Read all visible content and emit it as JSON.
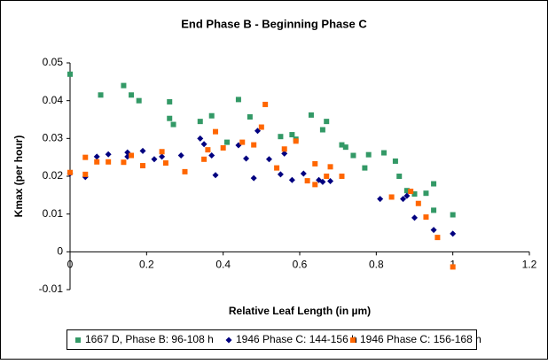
{
  "chart_data": {
    "type": "scatter",
    "title": "End Phase B - Beginning Phase C",
    "x_label": "Relative Leaf Length (in µm)",
    "y_label": "Kmax (per hour)",
    "xlim": [
      0,
      1.2
    ],
    "xticks": [
      0,
      0.2,
      0.4,
      0.6,
      0.8,
      1,
      1.2
    ],
    "ylim": [
      -0.01,
      0.05
    ],
    "yticks": [
      -0.01,
      0,
      0.01,
      0.02,
      0.03,
      0.04,
      0.05
    ],
    "legend": "bottom",
    "series": [
      {
        "name": "1667 D, Phase B: 96-108 h",
        "color": "#339966",
        "marker": "square",
        "x": [
          0,
          0.08,
          0.14,
          0.16,
          0.18,
          0.26,
          0.26,
          0.27,
          0.34,
          0.37,
          0.41,
          0.44,
          0.47,
          0.55,
          0.58,
          0.59,
          0.63,
          0.66,
          0.67,
          0.71,
          0.72,
          0.74,
          0.77,
          0.78,
          0.82,
          0.85,
          0.86,
          0.88,
          0.9,
          0.93,
          0.95,
          0.95,
          1.0
        ],
        "values": [
          0.047,
          0.0415,
          0.044,
          0.0415,
          0.04,
          0.0353,
          0.0397,
          0.0337,
          0.0345,
          0.036,
          0.029,
          0.0403,
          0.0357,
          0.0305,
          0.031,
          0.0298,
          0.0362,
          0.0323,
          0.0345,
          0.0283,
          0.0277,
          0.0255,
          0.0222,
          0.0257,
          0.0262,
          0.024,
          0.02,
          0.0162,
          0.0153,
          0.0155,
          0.011,
          0.018,
          0.0098
        ]
      },
      {
        "name": "1946 Phase C: 144-156 h",
        "color": "#000080",
        "marker": "diamond",
        "x": [
          0,
          0.04,
          0.07,
          0.1,
          0.15,
          0.15,
          0.19,
          0.22,
          0.24,
          0.29,
          0.34,
          0.35,
          0.37,
          0.38,
          0.44,
          0.46,
          0.48,
          0.49,
          0.52,
          0.55,
          0.56,
          0.58,
          0.61,
          0.65,
          0.66,
          0.68,
          0.81,
          0.87,
          0.88,
          0.9,
          0.95,
          1.0
        ],
        "values": [
          0.0207,
          0.0198,
          0.0252,
          0.0258,
          0.0252,
          0.0263,
          0.0267,
          0.0245,
          0.0252,
          0.0255,
          0.03,
          0.0285,
          0.0255,
          0.0203,
          0.0282,
          0.0247,
          0.0195,
          0.032,
          0.0245,
          0.0205,
          0.026,
          0.019,
          0.0207,
          0.019,
          0.0185,
          0.0187,
          0.014,
          0.014,
          0.0148,
          0.009,
          0.0058,
          0.0048
        ]
      },
      {
        "name": "1946 Phase C: 156-168 h",
        "color": "#ff6600",
        "marker": "square",
        "x": [
          0,
          0.04,
          0.04,
          0.07,
          0.1,
          0.14,
          0.16,
          0.19,
          0.24,
          0.25,
          0.3,
          0.35,
          0.36,
          0.38,
          0.4,
          0.45,
          0.48,
          0.5,
          0.51,
          0.54,
          0.56,
          0.59,
          0.62,
          0.64,
          0.64,
          0.68,
          0.67,
          0.71,
          0.84,
          0.89,
          0.91,
          0.93,
          0.96,
          1.0
        ],
        "values": [
          0.021,
          0.025,
          0.0205,
          0.0238,
          0.0238,
          0.0237,
          0.0255,
          0.0228,
          0.0265,
          0.0235,
          0.0212,
          0.0245,
          0.027,
          0.0318,
          0.0275,
          0.029,
          0.0283,
          0.033,
          0.039,
          0.0222,
          0.0272,
          0.0293,
          0.0188,
          0.0233,
          0.0178,
          0.0225,
          0.02,
          0.02,
          0.0145,
          0.016,
          0.0128,
          0.0092,
          0.0038,
          -0.004
        ]
      }
    ]
  }
}
